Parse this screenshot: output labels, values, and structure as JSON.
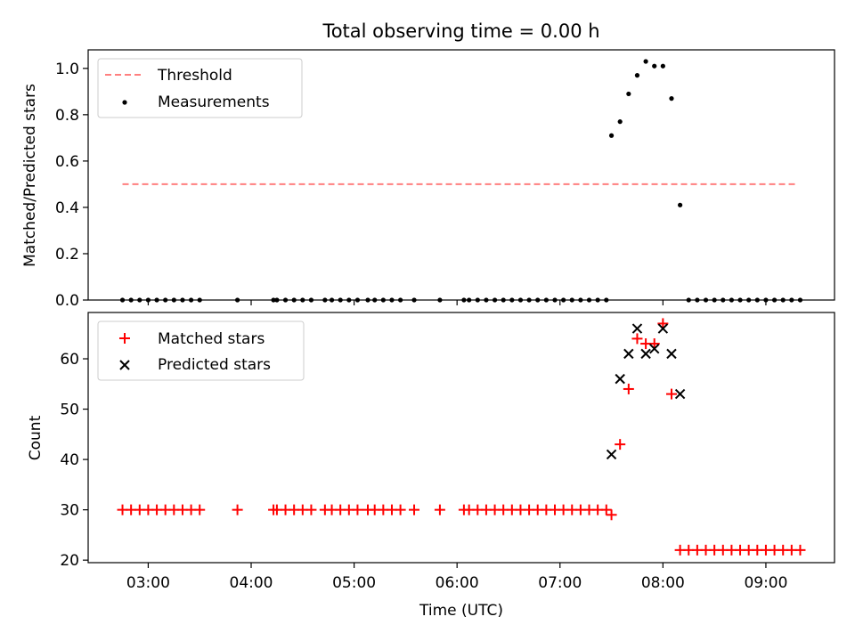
{
  "title": "Total observing time = 0.00 h",
  "colors": {
    "threshold": "#ff7f7f",
    "measurement": "#000000",
    "matched": "#ff0000",
    "predicted": "#000000"
  },
  "chart_data": [
    {
      "type": "scatter",
      "title": "Total observing time = 0.00 h",
      "xlabel": "",
      "ylabel": "Matched/Predicted stars",
      "xlim": [
        "02:25",
        "09:40"
      ],
      "ylim": [
        0,
        1.08
      ],
      "yticks": [
        "0.0",
        "0.2",
        "0.4",
        "0.6",
        "0.8",
        "1.0"
      ],
      "legend_position": "upper-left",
      "series": [
        {
          "name": "Threshold",
          "kind": "dashed-line",
          "x": [
            "02:45",
            "09:18"
          ],
          "y": [
            0.5,
            0.5
          ]
        },
        {
          "name": "Measurements",
          "kind": "dots",
          "x": [
            "02:45",
            "02:50",
            "02:55",
            "03:00",
            "03:05",
            "03:10",
            "03:15",
            "03:20",
            "03:25",
            "03:30",
            "03:52",
            "04:13",
            "04:15",
            "04:20",
            "04:25",
            "04:30",
            "04:35",
            "04:43",
            "04:47",
            "04:52",
            "04:57",
            "05:02",
            "05:08",
            "05:12",
            "05:17",
            "05:22",
            "05:27",
            "05:35",
            "05:50",
            "06:04",
            "06:07",
            "06:12",
            "06:17",
            "06:22",
            "06:27",
            "06:32",
            "06:37",
            "06:42",
            "06:47",
            "06:52",
            "06:57",
            "07:02",
            "07:07",
            "07:12",
            "07:17",
            "07:22",
            "07:27",
            "07:30",
            "07:35",
            "07:40",
            "07:45",
            "07:50",
            "07:55",
            "08:00",
            "08:05",
            "08:10",
            "08:15",
            "08:20",
            "08:25",
            "08:30",
            "08:35",
            "08:40",
            "08:45",
            "08:50",
            "08:55",
            "09:00",
            "09:05",
            "09:10",
            "09:15",
            "09:20"
          ],
          "y": [
            0,
            0,
            0,
            0,
            0,
            0,
            0,
            0,
            0,
            0,
            0,
            0,
            0,
            0,
            0,
            0,
            0,
            0,
            0,
            0,
            0,
            0,
            0,
            0,
            0,
            0,
            0,
            0,
            0,
            0,
            0,
            0,
            0,
            0,
            0,
            0,
            0,
            0,
            0,
            0,
            0,
            0,
            0,
            0,
            0,
            0,
            0,
            0.71,
            0.77,
            0.89,
            0.97,
            1.03,
            1.01,
            1.01,
            0.87,
            0.41,
            0,
            0,
            0,
            0,
            0,
            0,
            0,
            0,
            0,
            0,
            0,
            0,
            0,
            0
          ]
        }
      ]
    },
    {
      "type": "scatter",
      "xlabel": "Time (UTC)",
      "ylabel": "Count",
      "xlim": [
        "02:25",
        "09:40"
      ],
      "ylim": [
        19.5,
        69.2
      ],
      "xticks": [
        "03:00",
        "04:00",
        "05:00",
        "06:00",
        "07:00",
        "08:00",
        "09:00"
      ],
      "yticks": [
        "20",
        "30",
        "40",
        "50",
        "60"
      ],
      "legend_position": "upper-left",
      "series": [
        {
          "name": "Matched stars",
          "kind": "plus",
          "x": [
            "02:45",
            "02:50",
            "02:55",
            "03:00",
            "03:05",
            "03:10",
            "03:15",
            "03:20",
            "03:25",
            "03:30",
            "03:52",
            "04:13",
            "04:15",
            "04:20",
            "04:25",
            "04:30",
            "04:35",
            "04:43",
            "04:47",
            "04:52",
            "04:57",
            "05:02",
            "05:08",
            "05:12",
            "05:17",
            "05:22",
            "05:27",
            "05:35",
            "05:50",
            "06:04",
            "06:07",
            "06:12",
            "06:17",
            "06:22",
            "06:27",
            "06:32",
            "06:37",
            "06:42",
            "06:47",
            "06:52",
            "06:57",
            "07:02",
            "07:07",
            "07:12",
            "07:17",
            "07:22",
            "07:27",
            "07:30",
            "07:35",
            "07:40",
            "07:45",
            "07:50",
            "07:55",
            "08:00",
            "08:05",
            "08:10",
            "08:15",
            "08:20",
            "08:25",
            "08:30",
            "08:35",
            "08:40",
            "08:45",
            "08:50",
            "08:55",
            "09:00",
            "09:05",
            "09:10",
            "09:15",
            "09:20"
          ],
          "y": [
            30,
            30,
            30,
            30,
            30,
            30,
            30,
            30,
            30,
            30,
            30,
            30,
            30,
            30,
            30,
            30,
            30,
            30,
            30,
            30,
            30,
            30,
            30,
            30,
            30,
            30,
            30,
            30,
            30,
            30,
            30,
            30,
            30,
            30,
            30,
            30,
            30,
            30,
            30,
            30,
            30,
            30,
            30,
            30,
            30,
            30,
            30,
            29,
            43,
            54,
            64,
            63,
            63,
            67,
            53,
            22,
            22,
            22,
            22,
            22,
            22,
            22,
            22,
            22,
            22,
            22,
            22,
            22,
            22,
            22
          ]
        },
        {
          "name": "Predicted stars",
          "kind": "x",
          "x": [
            "07:30",
            "07:35",
            "07:40",
            "07:45",
            "07:50",
            "07:55",
            "08:00",
            "08:05",
            "08:10"
          ],
          "y": [
            41,
            56,
            61,
            66,
            61,
            62,
            66,
            61,
            53
          ]
        }
      ]
    }
  ]
}
